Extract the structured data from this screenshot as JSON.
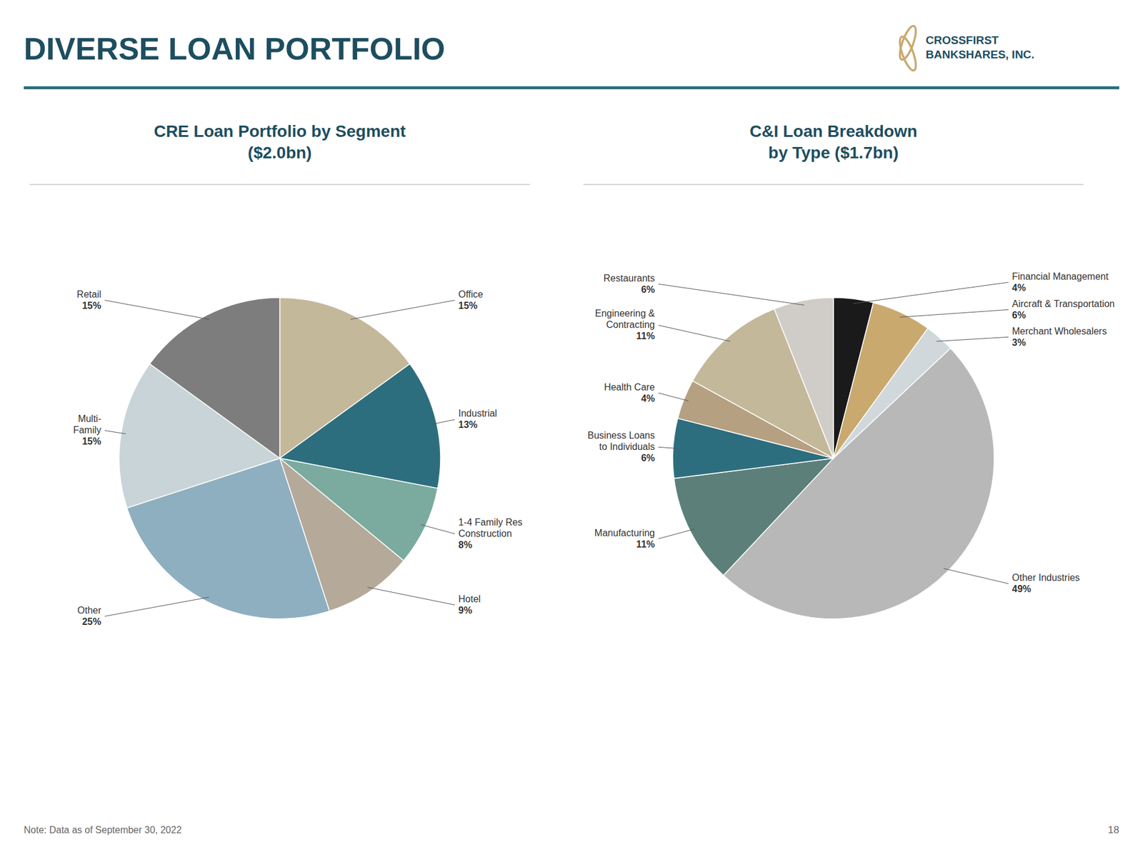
{
  "title": "DIVERSE LOAN PORTFOLIO",
  "annotations": [
    "CROSSFIRST\nBANKSHARES, INC.",
    "Note: Data as of September 30, 2022",
    "18"
  ],
  "chart_data": [
    {
      "type": "pie",
      "title": "CRE Loan Portfolio by Segment\n($2.0bn)",
      "categories": [
        "Office",
        "Industrial",
        "1-4 Family Res\nConstruction",
        "Hotel",
        "Other",
        "Multi-\nFamily",
        "Retail"
      ],
      "values": [
        15,
        13,
        8,
        9,
        25,
        15,
        15
      ],
      "value_labels": [
        "15%",
        "13%",
        "8%",
        "9%",
        "25%",
        "15%",
        "15%"
      ],
      "colors": [
        "#c4b89a",
        "#2d6e7e",
        "#7aab9e",
        "#b5a99a",
        "#8eafc0",
        "#c8d4d8",
        "#7d7d7d"
      ],
      "data_labels": true
    },
    {
      "type": "pie",
      "title": "C&I Loan Breakdown\nby Type ($1.7bn)",
      "categories": [
        "Financial Management",
        "Aircraft & Transportation",
        "Merchant Wholesalers",
        "Other Industries",
        "Manufacturing",
        "Business Loans\nto Individuals",
        "Health Care",
        "Engineering &\nContracting",
        "Restaurants"
      ],
      "values": [
        4,
        6,
        3,
        49,
        11,
        6,
        4,
        11,
        6
      ],
      "value_labels": [
        "4%",
        "6%",
        "3%",
        "49%",
        "11%",
        "6%",
        "4%",
        "11%",
        "6%"
      ],
      "colors": [
        "#1a1a1a",
        "#c9a96e",
        "#d0d8dc",
        "#b8b8b8",
        "#5c7f7a",
        "#2d6e7e",
        "#b5a082",
        "#c4b89a",
        "#d0cdc8"
      ],
      "data_labels": true
    }
  ]
}
